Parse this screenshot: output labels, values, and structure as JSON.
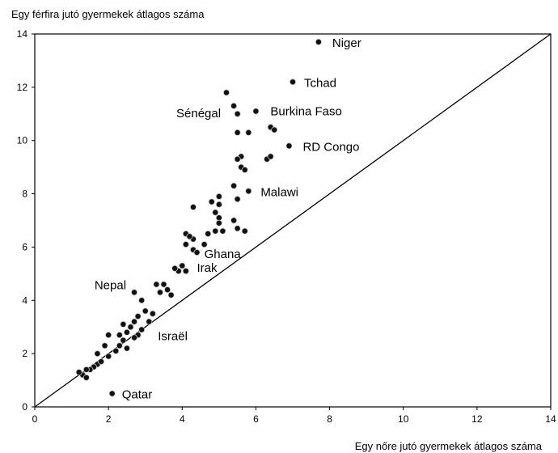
{
  "chart_data": {
    "type": "scatter",
    "ylabel": "Egy férfira jutó gyermekek átlagos száma",
    "xlabel": "Egy nőre jutó gyermekek átlagos száma",
    "xlim": [
      0,
      14
    ],
    "ylim": [
      0,
      14
    ],
    "xticks": [
      0,
      2,
      4,
      6,
      8,
      10,
      12,
      14
    ],
    "yticks": [
      0,
      2,
      4,
      6,
      8,
      10,
      12,
      14
    ],
    "grid": false,
    "reference_line": {
      "x": [
        0,
        14
      ],
      "y": [
        0,
        14
      ]
    },
    "labeled_points": [
      {
        "label": "Niger",
        "x": 7.7,
        "y": 13.7
      },
      {
        "label": "Tchad",
        "x": 7.0,
        "y": 12.2
      },
      {
        "label": "Burkina Faso",
        "x": 6.0,
        "y": 11.1
      },
      {
        "label": "Sénégal",
        "x": 5.4,
        "y": 11.3
      },
      {
        "label": "RD Congo",
        "x": 6.9,
        "y": 9.8
      },
      {
        "label": "Malawi",
        "x": 5.8,
        "y": 8.1
      },
      {
        "label": "Ghana",
        "x": 4.6,
        "y": 6.1
      },
      {
        "label": "Irak",
        "x": 4.4,
        "y": 5.8
      },
      {
        "label": "Nepal",
        "x": 2.7,
        "y": 4.3
      },
      {
        "label": "Israël",
        "x": 3.1,
        "y": 3.2
      },
      {
        "label": "Qatar",
        "x": 2.1,
        "y": 0.5
      }
    ],
    "points": [
      {
        "x": 7.7,
        "y": 13.7
      },
      {
        "x": 7.0,
        "y": 12.2
      },
      {
        "x": 6.0,
        "y": 11.1
      },
      {
        "x": 5.4,
        "y": 11.3
      },
      {
        "x": 5.5,
        "y": 11.0
      },
      {
        "x": 5.2,
        "y": 11.8
      },
      {
        "x": 5.5,
        "y": 10.3
      },
      {
        "x": 5.8,
        "y": 10.3
      },
      {
        "x": 6.4,
        "y": 10.5
      },
      {
        "x": 6.5,
        "y": 10.4
      },
      {
        "x": 6.9,
        "y": 9.8
      },
      {
        "x": 6.3,
        "y": 9.3
      },
      {
        "x": 6.4,
        "y": 9.4
      },
      {
        "x": 5.6,
        "y": 9.4
      },
      {
        "x": 5.5,
        "y": 9.3
      },
      {
        "x": 5.6,
        "y": 9.0
      },
      {
        "x": 5.7,
        "y": 8.9
      },
      {
        "x": 5.4,
        "y": 8.3
      },
      {
        "x": 5.8,
        "y": 8.1
      },
      {
        "x": 5.5,
        "y": 7.8
      },
      {
        "x": 5.0,
        "y": 7.9
      },
      {
        "x": 4.8,
        "y": 7.7
      },
      {
        "x": 4.3,
        "y": 7.5
      },
      {
        "x": 5.0,
        "y": 7.6
      },
      {
        "x": 4.9,
        "y": 7.3
      },
      {
        "x": 5.0,
        "y": 7.1
      },
      {
        "x": 5.0,
        "y": 6.9
      },
      {
        "x": 5.4,
        "y": 7.0
      },
      {
        "x": 5.5,
        "y": 6.7
      },
      {
        "x": 5.7,
        "y": 6.6
      },
      {
        "x": 4.7,
        "y": 6.5
      },
      {
        "x": 4.9,
        "y": 6.6
      },
      {
        "x": 5.1,
        "y": 6.6
      },
      {
        "x": 4.1,
        "y": 6.5
      },
      {
        "x": 4.3,
        "y": 6.3
      },
      {
        "x": 4.2,
        "y": 6.4
      },
      {
        "x": 4.6,
        "y": 6.1
      },
      {
        "x": 4.1,
        "y": 6.1
      },
      {
        "x": 4.3,
        "y": 5.9
      },
      {
        "x": 4.4,
        "y": 5.8
      },
      {
        "x": 4.0,
        "y": 5.3
      },
      {
        "x": 3.9,
        "y": 5.1
      },
      {
        "x": 4.1,
        "y": 5.1
      },
      {
        "x": 3.8,
        "y": 5.2
      },
      {
        "x": 3.3,
        "y": 4.6
      },
      {
        "x": 3.5,
        "y": 4.6
      },
      {
        "x": 3.6,
        "y": 4.4
      },
      {
        "x": 3.7,
        "y": 4.2
      },
      {
        "x": 3.4,
        "y": 4.3
      },
      {
        "x": 2.7,
        "y": 4.3
      },
      {
        "x": 2.9,
        "y": 4.0
      },
      {
        "x": 3.0,
        "y": 3.6
      },
      {
        "x": 3.2,
        "y": 3.5
      },
      {
        "x": 2.8,
        "y": 3.4
      },
      {
        "x": 2.7,
        "y": 3.2
      },
      {
        "x": 2.4,
        "y": 3.1
      },
      {
        "x": 2.6,
        "y": 3.0
      },
      {
        "x": 2.9,
        "y": 2.9
      },
      {
        "x": 3.1,
        "y": 3.2
      },
      {
        "x": 2.5,
        "y": 2.8
      },
      {
        "x": 2.3,
        "y": 2.7
      },
      {
        "x": 2.0,
        "y": 2.7
      },
      {
        "x": 2.8,
        "y": 2.7
      },
      {
        "x": 2.4,
        "y": 2.5
      },
      {
        "x": 2.7,
        "y": 2.6
      },
      {
        "x": 2.5,
        "y": 2.2
      },
      {
        "x": 2.3,
        "y": 2.3
      },
      {
        "x": 2.2,
        "y": 2.1
      },
      {
        "x": 1.9,
        "y": 2.3
      },
      {
        "x": 1.7,
        "y": 2.0
      },
      {
        "x": 2.0,
        "y": 1.9
      },
      {
        "x": 1.7,
        "y": 1.6
      },
      {
        "x": 1.8,
        "y": 1.7
      },
      {
        "x": 1.6,
        "y": 1.5
      },
      {
        "x": 1.5,
        "y": 1.4
      },
      {
        "x": 1.4,
        "y": 1.4
      },
      {
        "x": 1.3,
        "y": 1.2
      },
      {
        "x": 1.4,
        "y": 1.1
      },
      {
        "x": 1.2,
        "y": 1.3
      },
      {
        "x": 2.1,
        "y": 0.5
      }
    ]
  }
}
